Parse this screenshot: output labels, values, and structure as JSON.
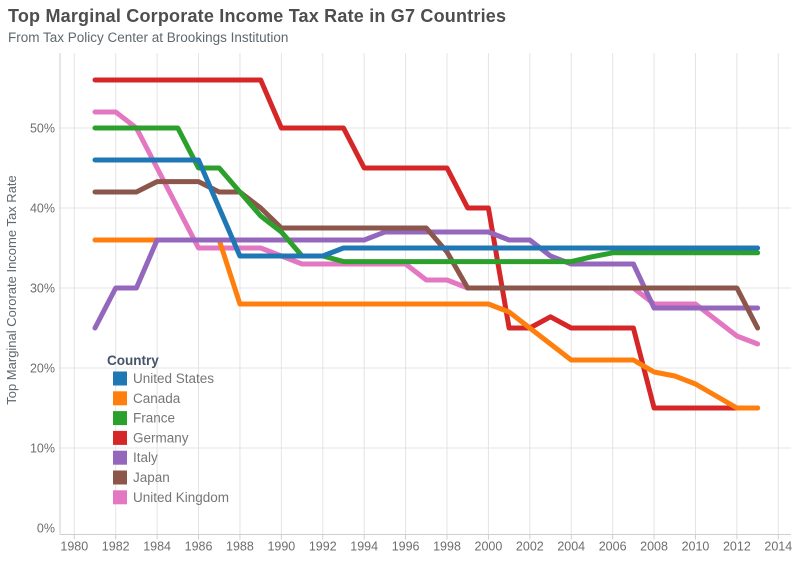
{
  "header": {
    "title": "Top Marginal Corporate Income Tax Rate in G7 Countries",
    "subtitle": "From Tax Policy Center at Brookings Institution"
  },
  "chart_data": {
    "type": "line",
    "title": "Top Marginal Corporate Income Tax Rate in G7 Countries",
    "subtitle": "From Tax Policy Center at Brookings Institution",
    "xlabel": "",
    "ylabel": "Top Marginal Cororate Income Tax Rate",
    "x_ticks": [
      1980,
      1982,
      1984,
      1986,
      1988,
      1990,
      1992,
      1994,
      1996,
      1998,
      2000,
      2002,
      2004,
      2006,
      2008,
      2010,
      2012,
      2014
    ],
    "y_tick_labels": [
      "0%",
      "10%",
      "20%",
      "30%",
      "40%",
      "50%"
    ],
    "x_range": [
      1979.4,
      2014.6
    ],
    "y_range": [
      0,
      59
    ],
    "grid": true,
    "legend_title": "Country",
    "legend_position": "inside-bottom-left",
    "start_year": 1981,
    "end_year": 2013,
    "series": [
      {
        "name": "United States",
        "color": "#1f77b4",
        "values": [
          46,
          46,
          46,
          46,
          46,
          46,
          40,
          34,
          34,
          34,
          34,
          34,
          35,
          35,
          35,
          35,
          35,
          35,
          35,
          35,
          35,
          35,
          35,
          35,
          35,
          35,
          35,
          35,
          35,
          35,
          35,
          35,
          35
        ]
      },
      {
        "name": "Canada",
        "color": "#ff7f0e",
        "values": [
          36,
          36,
          36,
          36,
          36,
          36,
          36,
          28,
          28,
          28,
          28,
          28,
          28,
          28,
          28,
          28,
          28,
          28,
          28,
          28,
          27,
          25,
          23,
          21,
          21,
          21,
          21,
          19.5,
          19,
          18,
          16.5,
          15,
          15
        ]
      },
      {
        "name": "France",
        "color": "#2ca02c",
        "values": [
          50,
          50,
          50,
          50,
          50,
          45,
          45,
          42,
          39,
          37,
          34,
          34,
          33.3,
          33.3,
          33.3,
          33.3,
          33.3,
          33.3,
          33.3,
          33.3,
          33.3,
          33.3,
          33.3,
          33.3,
          33.9,
          34.4,
          34.4,
          34.4,
          34.4,
          34.4,
          34.4,
          34.4,
          34.4
        ]
      },
      {
        "name": "Germany",
        "color": "#d62728",
        "values": [
          56,
          56,
          56,
          56,
          56,
          56,
          56,
          56,
          56,
          50,
          50,
          50,
          50,
          45,
          45,
          45,
          45,
          45,
          40,
          40,
          25,
          25,
          26.4,
          25,
          25,
          25,
          25,
          15,
          15,
          15,
          15,
          15,
          15
        ]
      },
      {
        "name": "Italy",
        "color": "#9467bd",
        "values": [
          25,
          30,
          30,
          36,
          36,
          36,
          36,
          36,
          36,
          36,
          36,
          36,
          36,
          36,
          37,
          37,
          37,
          37,
          37,
          37,
          36,
          36,
          34,
          33,
          33,
          33,
          33,
          27.5,
          27.5,
          27.5,
          27.5,
          27.5,
          27.5
        ]
      },
      {
        "name": "Japan",
        "color": "#8c564b",
        "values": [
          42,
          42,
          42,
          43.3,
          43.3,
          43.3,
          42,
          42,
          40,
          37.5,
          37.5,
          37.5,
          37.5,
          37.5,
          37.5,
          37.5,
          37.5,
          34.5,
          30,
          30,
          30,
          30,
          30,
          30,
          30,
          30,
          30,
          30,
          30,
          30,
          30,
          30,
          25
        ]
      },
      {
        "name": "United Kingdom",
        "color": "#e377c2",
        "values": [
          52,
          52,
          50,
          45,
          40,
          35,
          35,
          35,
          35,
          34,
          33,
          33,
          33,
          33,
          33,
          33,
          31,
          31,
          30,
          30,
          30,
          30,
          30,
          30,
          30,
          30,
          30,
          28,
          28,
          28,
          26,
          24,
          23
        ]
      }
    ],
    "draw_order": [
      "United Kingdom",
      "Germany",
      "Canada",
      "Italy",
      "Japan",
      "France",
      "United States"
    ]
  }
}
